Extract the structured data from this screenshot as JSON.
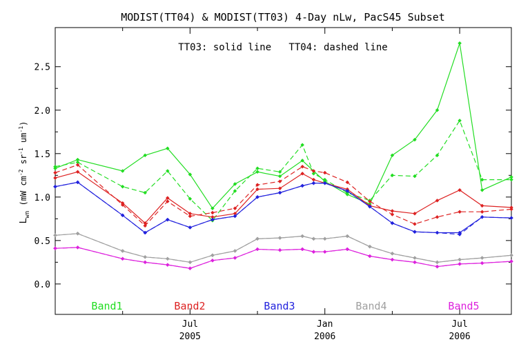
{
  "chart_data": {
    "type": "line",
    "title": "MODIST(TT04) & MODIST(TT03) 4-Day nLw, PacS45 Subset",
    "annotation": "TT03: solid line   TT04: dashed line",
    "ylabel_main": "L",
    "ylabel_sub": "wn",
    "ylabel_rest": " (mW cm",
    "ylabel_exp1": "-2",
    "ylabel_mid": " sr",
    "ylabel_exp2": "-1",
    "ylabel_mid2": " um",
    "ylabel_exp3": "-1",
    "ylabel_end": ")",
    "ylim": [
      -0.35,
      2.95
    ],
    "yticks": [
      0.0,
      0.5,
      1.0,
      1.5,
      2.0,
      2.5
    ],
    "ytick_labels": [
      "0.0",
      "0.5",
      "1.0",
      "1.5",
      "2.0",
      "2.5"
    ],
    "xlim": [
      0,
      20.3
    ],
    "xticks": [
      {
        "x": 6,
        "label": "Jul",
        "year": "2005"
      },
      {
        "x": 12,
        "label": "Jan",
        "year": "2006"
      },
      {
        "x": 18,
        "label": "Jul",
        "year": "2006"
      }
    ],
    "minor_xticks": [
      3,
      9,
      15
    ],
    "grid": false,
    "legend_position": "bottom",
    "x": [
      0,
      1,
      3,
      4,
      5,
      6,
      7,
      8,
      9,
      10,
      11,
      11.5,
      12,
      13,
      14,
      15,
      16,
      17,
      18,
      19,
      20.3
    ],
    "series": [
      {
        "name": "Band1",
        "color": "#22dd22",
        "solid": [
          1.33,
          1.43,
          1.3,
          1.48,
          1.56,
          1.26,
          0.87,
          1.15,
          1.29,
          1.24,
          1.42,
          1.3,
          1.18,
          1.03,
          0.92,
          1.48,
          1.66,
          2.0,
          2.77,
          1.08,
          1.23
        ],
        "dashed": [
          1.35,
          1.4,
          1.12,
          1.05,
          1.3,
          0.98,
          0.73,
          1.07,
          1.33,
          1.29,
          1.6,
          1.27,
          1.2,
          1.05,
          0.96,
          1.25,
          1.24,
          1.48,
          1.88,
          1.2,
          1.2
        ]
      },
      {
        "name": "Band2",
        "color": "#dd2222",
        "solid": [
          1.22,
          1.29,
          0.93,
          0.7,
          0.99,
          0.81,
          0.77,
          0.81,
          1.09,
          1.1,
          1.27,
          1.2,
          1.16,
          1.09,
          0.9,
          0.84,
          0.81,
          0.96,
          1.08,
          0.9,
          0.88
        ],
        "dashed": [
          1.28,
          1.37,
          0.91,
          0.67,
          0.95,
          0.78,
          0.82,
          0.87,
          1.14,
          1.18,
          1.35,
          1.3,
          1.28,
          1.17,
          0.95,
          0.8,
          0.69,
          0.77,
          0.83,
          0.83,
          0.86
        ]
      },
      {
        "name": "Band3",
        "color": "#2222dd",
        "solid": [
          1.12,
          1.17,
          0.79,
          0.59,
          0.74,
          0.65,
          0.74,
          0.78,
          1.0,
          1.05,
          1.13,
          1.16,
          1.16,
          1.07,
          0.89,
          0.7,
          0.6,
          0.59,
          0.59,
          0.77,
          0.76
        ],
        "dashed": [
          1.12,
          1.17,
          0.79,
          0.59,
          0.74,
          0.65,
          0.74,
          0.78,
          1.0,
          1.05,
          1.13,
          1.16,
          1.16,
          1.07,
          0.89,
          0.7,
          0.6,
          0.59,
          0.57,
          0.77,
          0.76
        ]
      },
      {
        "name": "Band4",
        "color": "#a0a0a0",
        "solid": [
          0.56,
          0.58,
          0.38,
          0.31,
          0.29,
          0.25,
          0.33,
          0.38,
          0.52,
          0.53,
          0.55,
          0.52,
          0.52,
          0.55,
          0.43,
          0.35,
          0.3,
          0.25,
          0.28,
          0.3,
          0.33
        ],
        "dashed": [
          0.56,
          0.58,
          0.38,
          0.31,
          0.29,
          0.25,
          0.33,
          0.38,
          0.52,
          0.53,
          0.55,
          0.52,
          0.52,
          0.55,
          0.43,
          0.35,
          0.3,
          0.25,
          0.28,
          0.3,
          0.33
        ]
      },
      {
        "name": "Band5",
        "color": "#dd22dd",
        "solid": [
          0.41,
          0.42,
          0.29,
          0.25,
          0.22,
          0.18,
          0.27,
          0.3,
          0.4,
          0.39,
          0.4,
          0.37,
          0.37,
          0.4,
          0.32,
          0.28,
          0.25,
          0.2,
          0.23,
          0.24,
          0.26
        ],
        "dashed": [
          0.41,
          0.42,
          0.29,
          0.25,
          0.22,
          0.18,
          0.27,
          0.3,
          0.4,
          0.39,
          0.4,
          0.37,
          0.37,
          0.4,
          0.32,
          0.28,
          0.25,
          0.2,
          0.23,
          0.24,
          0.26
        ]
      }
    ]
  }
}
